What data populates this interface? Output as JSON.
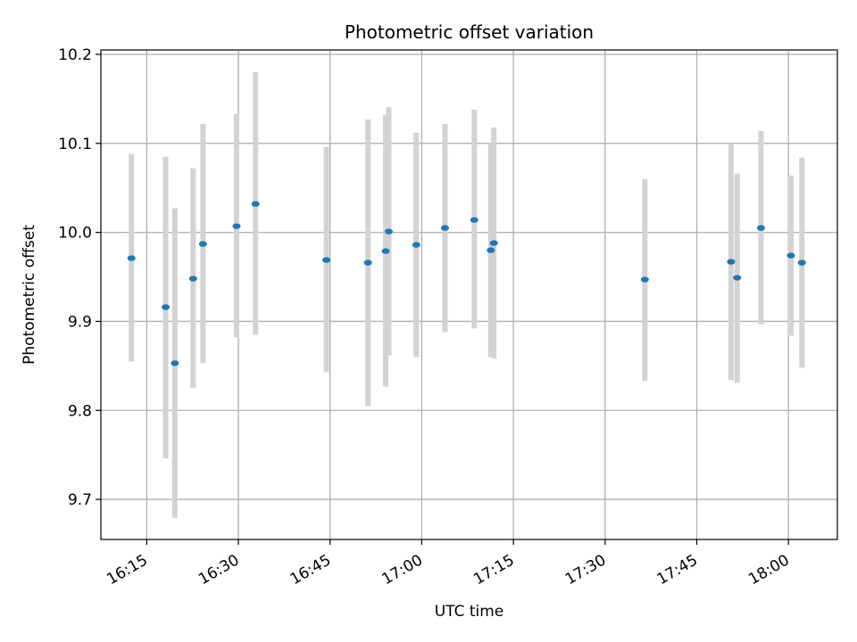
{
  "chart_data": {
    "type": "scatter",
    "title": "Photometric offset variation",
    "xlabel": "UTC time",
    "ylabel": "Photometric offset",
    "x_ticks": [
      "16:15",
      "16:30",
      "16:45",
      "17:00",
      "17:15",
      "17:30",
      "17:45",
      "18:00"
    ],
    "y_ticks": [
      "9.7",
      "9.8",
      "9.9",
      "10.0",
      "10.1",
      "10.2"
    ],
    "xlim": [
      "16:07.5",
      "18:08"
    ],
    "ylim": [
      9.655,
      10.205
    ],
    "grid": true,
    "colors": {
      "point": "#1f77b4",
      "errorbar": "#d3d3d3",
      "grid": "#b0b0b0"
    },
    "series": [
      {
        "points": [
          {
            "x": "16:12.5",
            "y": 9.971,
            "err_low": 9.855,
            "err_high": 10.088
          },
          {
            "x": "16:18.1",
            "y": 9.916,
            "err_low": 9.746,
            "err_high": 10.085
          },
          {
            "x": "16:19.6",
            "y": 9.853,
            "err_low": 9.679,
            "err_high": 10.027
          },
          {
            "x": "16:22.6",
            "y": 9.948,
            "err_low": 9.825,
            "err_high": 10.072
          },
          {
            "x": "16:24.2",
            "y": 9.987,
            "err_low": 9.853,
            "err_high": 10.122
          },
          {
            "x": "16:29.7",
            "y": 10.007,
            "err_low": 9.882,
            "err_high": 10.133
          },
          {
            "x": "16:32.8",
            "y": 10.032,
            "err_low": 9.885,
            "err_high": 10.18
          },
          {
            "x": "16:44.4",
            "y": 9.969,
            "err_low": 9.843,
            "err_high": 10.096
          },
          {
            "x": "16:51.2",
            "y": 9.966,
            "err_low": 9.805,
            "err_high": 10.127
          },
          {
            "x": "16:54.1",
            "y": 9.979,
            "err_low": 9.827,
            "err_high": 10.132
          },
          {
            "x": "16:54.6",
            "y": 10.001,
            "err_low": 9.862,
            "err_high": 10.141
          },
          {
            "x": "16:59.1",
            "y": 9.986,
            "err_low": 9.86,
            "err_high": 10.112
          },
          {
            "x": "17:03.8",
            "y": 10.005,
            "err_low": 9.888,
            "err_high": 10.122
          },
          {
            "x": "17:08.6",
            "y": 10.014,
            "err_low": 9.892,
            "err_high": 10.138
          },
          {
            "x": "17:11.3",
            "y": 9.98,
            "err_low": 9.86,
            "err_high": 10.1
          },
          {
            "x": "17:11.8",
            "y": 9.988,
            "err_low": 9.858,
            "err_high": 10.118
          },
          {
            "x": "17:36.5",
            "y": 9.947,
            "err_low": 9.833,
            "err_high": 10.06
          },
          {
            "x": "17:50.6",
            "y": 9.967,
            "err_low": 9.834,
            "err_high": 10.1
          },
          {
            "x": "17:51.6",
            "y": 9.949,
            "err_low": 9.831,
            "err_high": 10.066
          },
          {
            "x": "17:55.5",
            "y": 10.005,
            "err_low": 9.897,
            "err_high": 10.114
          },
          {
            "x": "18:00.4",
            "y": 9.974,
            "err_low": 9.884,
            "err_high": 10.064
          },
          {
            "x": "18:02.2",
            "y": 9.966,
            "err_low": 9.848,
            "err_high": 10.084
          }
        ]
      }
    ]
  }
}
